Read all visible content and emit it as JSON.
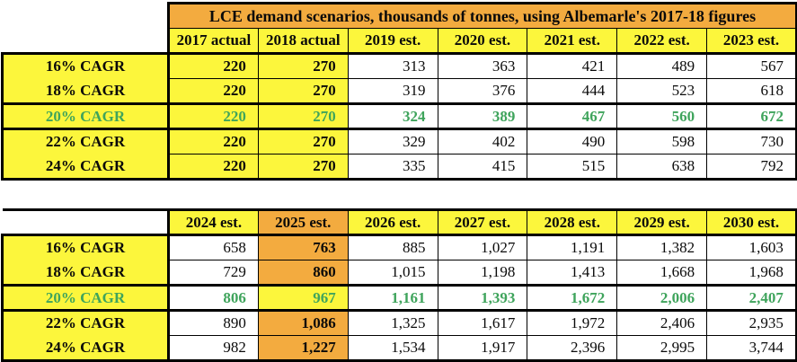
{
  "title": "LCE demand scenarios, thousands of tonnes, using Albemarle's 2017-18 figures",
  "colors": {
    "header_orange": "#F3AB3F",
    "cell_yellow": "#FCF63C",
    "highlight_green": "#3FA45C",
    "grid_black": "#000000"
  },
  "t1": {
    "headers": [
      "2017 actual",
      "2018 actual",
      "2019 est.",
      "2020 est.",
      "2021 est.",
      "2022 est.",
      "2023 est."
    ],
    "rows": [
      {
        "label": "16% CAGR",
        "v": [
          "220",
          "270",
          "313",
          "363",
          "421",
          "489",
          "567"
        ]
      },
      {
        "label": "18% CAGR",
        "v": [
          "220",
          "270",
          "319",
          "376",
          "444",
          "523",
          "618"
        ]
      },
      {
        "label": "20% CAGR",
        "v": [
          "220",
          "270",
          "324",
          "389",
          "467",
          "560",
          "672"
        ]
      },
      {
        "label": "22% CAGR",
        "v": [
          "220",
          "270",
          "329",
          "402",
          "490",
          "598",
          "730"
        ]
      },
      {
        "label": "24% CAGR",
        "v": [
          "220",
          "270",
          "335",
          "415",
          "515",
          "638",
          "792"
        ]
      }
    ]
  },
  "t2": {
    "headers": [
      "2024 est.",
      "2025 est.",
      "2026 est.",
      "2027 est.",
      "2028 est.",
      "2029 est.",
      "2030 est."
    ],
    "rows": [
      {
        "label": "16% CAGR",
        "v": [
          "658",
          "763",
          "885",
          "1,027",
          "1,191",
          "1,382",
          "1,603"
        ]
      },
      {
        "label": "18% CAGR",
        "v": [
          "729",
          "860",
          "1,015",
          "1,198",
          "1,413",
          "1,668",
          "1,968"
        ]
      },
      {
        "label": "20% CAGR",
        "v": [
          "806",
          "967",
          "1,161",
          "1,393",
          "1,672",
          "2,006",
          "2,407"
        ]
      },
      {
        "label": "22% CAGR",
        "v": [
          "890",
          "1,086",
          "1,325",
          "1,617",
          "1,972",
          "2,406",
          "2,935"
        ]
      },
      {
        "label": "24% CAGR",
        "v": [
          "982",
          "1,227",
          "1,534",
          "1,917",
          "2,396",
          "2,995",
          "3,744"
        ]
      }
    ]
  },
  "chart_data": {
    "type": "table",
    "title": "LCE demand scenarios, thousands of tonnes, using Albemarle's 2017-18 figures",
    "categories": [
      "2017 actual",
      "2018 actual",
      "2019 est.",
      "2020 est.",
      "2021 est.",
      "2022 est.",
      "2023 est.",
      "2024 est.",
      "2025 est.",
      "2026 est.",
      "2027 est.",
      "2028 est.",
      "2029 est.",
      "2030 est."
    ],
    "series": [
      {
        "name": "16% CAGR",
        "values": [
          220,
          270,
          313,
          363,
          421,
          489,
          567,
          658,
          763,
          885,
          1027,
          1191,
          1382,
          1603
        ]
      },
      {
        "name": "18% CAGR",
        "values": [
          220,
          270,
          319,
          376,
          444,
          523,
          618,
          729,
          860,
          1015,
          1198,
          1413,
          1668,
          1968
        ]
      },
      {
        "name": "20% CAGR",
        "values": [
          220,
          270,
          324,
          389,
          467,
          560,
          672,
          806,
          967,
          1161,
          1393,
          1672,
          2006,
          2407
        ]
      },
      {
        "name": "22% CAGR",
        "values": [
          220,
          270,
          329,
          402,
          490,
          598,
          730,
          890,
          1086,
          1325,
          1617,
          1972,
          2406,
          2935
        ]
      },
      {
        "name": "24% CAGR",
        "values": [
          220,
          270,
          335,
          415,
          515,
          638,
          792,
          982,
          1227,
          1534,
          1917,
          2396,
          2995,
          3744
        ]
      }
    ],
    "highlighted_series": "20% CAGR",
    "highlighted_column": "2025 est.",
    "units": "thousands of tonnes"
  }
}
